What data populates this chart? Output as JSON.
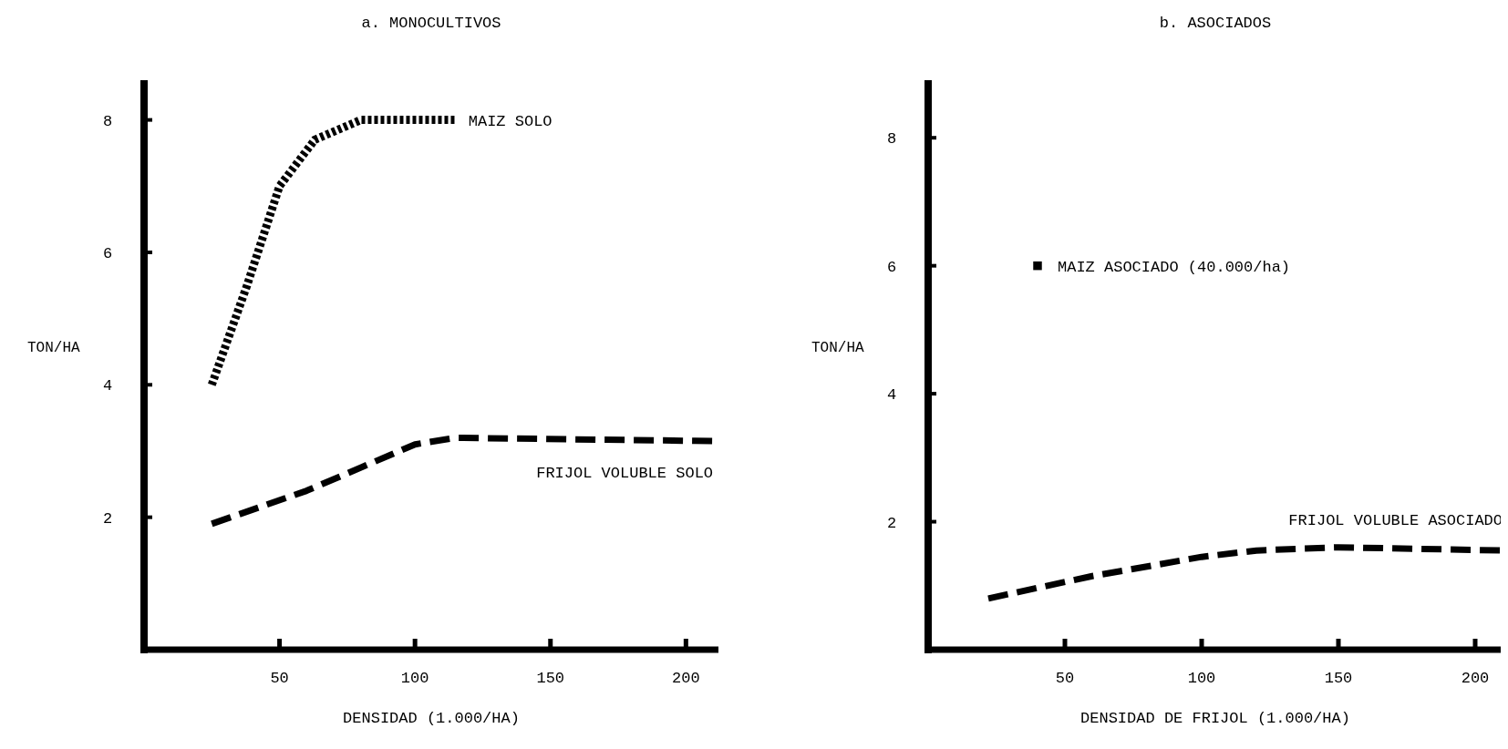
{
  "chart_data": [
    {
      "type": "line",
      "title": "a. MONOCULTIVOS",
      "xlabel": "DENSIDAD (1.000/HA)",
      "ylabel": "TON/HA",
      "xlim": [
        0,
        212
      ],
      "ylim": [
        0,
        8.6
      ],
      "xticks": [
        50,
        100,
        150,
        200
      ],
      "yticks": [
        2,
        4,
        6,
        8
      ],
      "grid": false,
      "series": [
        {
          "name": "MAIZ SOLO",
          "color": "#000000",
          "line_style": "dotted",
          "x": [
            25,
            38,
            50,
            63,
            80,
            115
          ],
          "values": [
            4,
            5.5,
            7,
            7.7,
            8,
            8
          ]
        },
        {
          "name": "FRIJOL VOLUBLE SOLO",
          "color": "#000000",
          "line_style": "dashed",
          "x": [
            25,
            60,
            100,
            115,
            210
          ],
          "values": [
            1.9,
            2.4,
            3.1,
            3.2,
            3.15
          ]
        }
      ]
    },
    {
      "type": "line",
      "title": "b. ASOCIADOS",
      "xlabel": "DENSIDAD DE FRIJOL (1.000/HA)",
      "ylabel": "TON/HA",
      "xlim": [
        0,
        210
      ],
      "ylim": [
        0,
        8.9
      ],
      "xticks": [
        50,
        100,
        150,
        200
      ],
      "yticks": [
        2,
        4,
        6,
        8
      ],
      "grid": false,
      "series": [
        {
          "name": "MAIZ ASOCIADO (40.000/ha)",
          "type": "scatter",
          "marker": "square",
          "color": "#000000",
          "x": [
            40
          ],
          "values": [
            6
          ]
        },
        {
          "name": "FRIJOL VOLUBLE ASOCIADO",
          "color": "#000000",
          "line_style": "dashed",
          "x": [
            22,
            60,
            100,
            120,
            150,
            210
          ],
          "values": [
            0.8,
            1.15,
            1.45,
            1.55,
            1.6,
            1.55
          ]
        }
      ]
    }
  ]
}
